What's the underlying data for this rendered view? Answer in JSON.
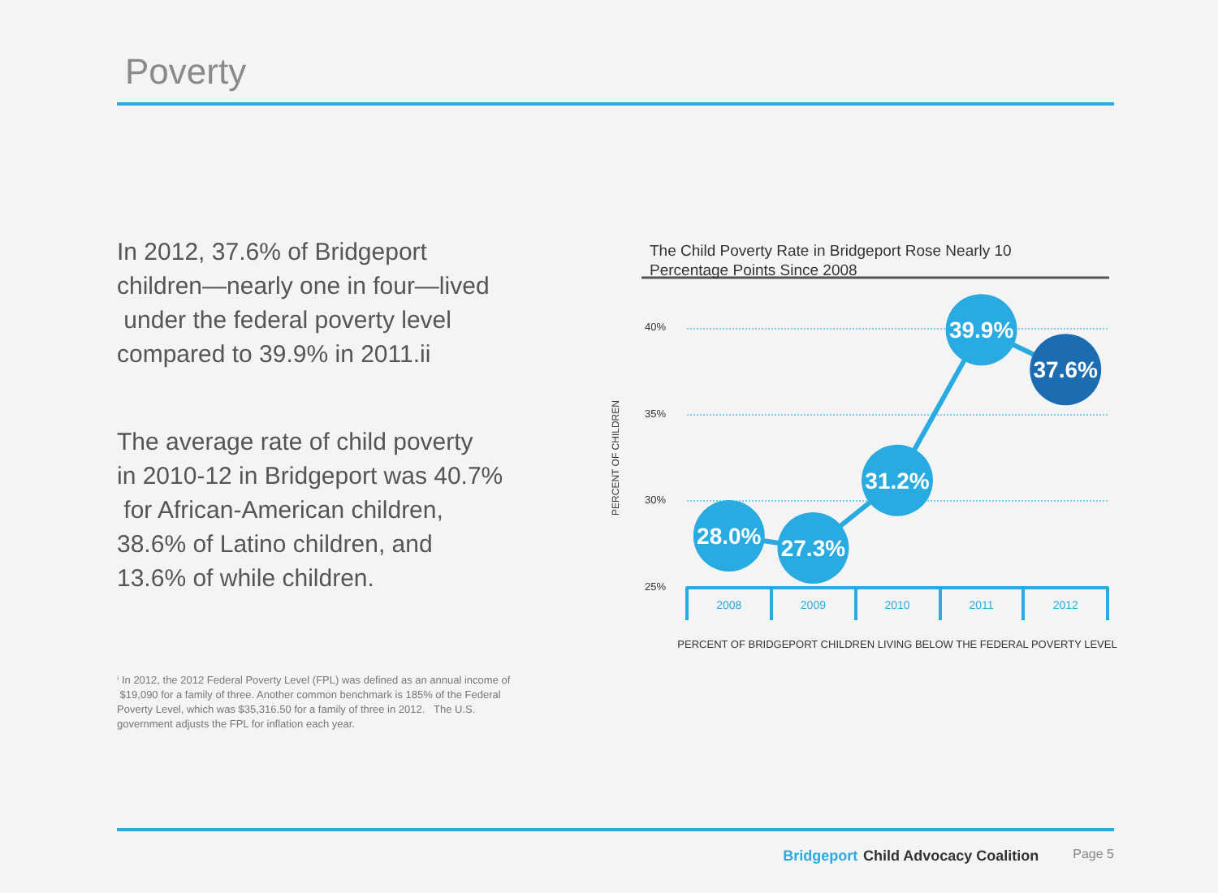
{
  "chart_data": {
    "type": "line",
    "title": "Poverty",
    "subtitle": "The Child Poverty Rate in Bridgeport Rose Nearly 10 Percentage Points Since 2008",
    "xlabel": "PERCENT OF BRIDGEPORT CHILDREN LIVING BELOW THE FEDERAL POVERTY LEVEL",
    "ylabel": "PERCENT OF CHILDREN",
    "categories": [
      "2008",
      "2009",
      "2010",
      "2011",
      "2012"
    ],
    "series": [
      {
        "color": "#29abe2",
        "colors": [
          "#29abe2",
          "#29abe2",
          "#29abe2",
          "#29abe2",
          "#1c6cb2"
        ],
        "values": [
          28.0,
          27.3,
          31.2,
          39.9,
          37.6
        ],
        "value_labels": [
          "28.0%",
          "27.3%",
          "31.2%",
          "39.9%",
          "37.6%"
        ]
      }
    ],
    "ylim": [
      25,
      40
    ],
    "yticks": [
      {
        "value": 25,
        "label": "25%"
      },
      {
        "value": 30,
        "label": "30%"
      },
      {
        "value": 35,
        "label": "35%"
      },
      {
        "value": 40,
        "label": "40%"
      }
    ],
    "grid": "y",
    "marker": "circle",
    "line_style": "solid",
    "annotations": [
      "In 2012, 37.6% of Bridgeport children—nearly one in four—lived under the federal poverty level compared to 39.9% in 2011.ii",
      "The average rate of child poverty in 2010-12 in Bridgeport was 40.7% for African-American children, 38.6% of Latino children, and 13.6% of while children.",
      "ⁱ In 2012, the 2012 Federal Poverty Level (FPL) was defined as an annual income of $19,090 for a family of three. Another common benchmark is 185% of the Federal Poverty Level, which was $35,316.50 for a family of three in 2012.   The U.S. government adjusts the FPL for inflation each year.",
      "Bridgeport Child Advocacy Coalition",
      "Page 5"
    ]
  }
}
